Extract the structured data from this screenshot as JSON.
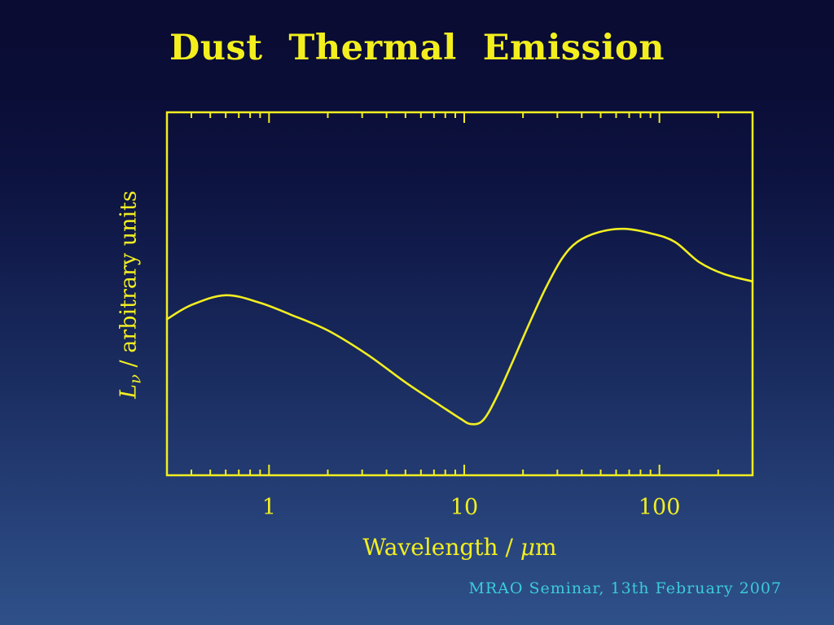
{
  "slide": {
    "title": "Dust Thermal Emission",
    "footer": "MRAO Seminar, 13th February 2007"
  },
  "labels": {
    "ylabel_L": "L",
    "ylabel_nu": "ν",
    "ylabel_rest": " / arbitrary units",
    "xlabel_main": "Wavelength / ",
    "xlabel_mu": "μ",
    "xlabel_unit": "m"
  },
  "colors": {
    "background_top": "#0a0c33",
    "background_bottom": "#2e5089",
    "accent_yellow": "#f2ee21",
    "footer_cyan": "#3bccd8"
  },
  "chart_data": {
    "type": "line",
    "title": "Dust Thermal Emission",
    "xlabel": "Wavelength / μm",
    "ylabel": "L_ν / arbitrary units",
    "x_scale": "log",
    "xlim": [
      0.3,
      300
    ],
    "ylim": [
      0,
      1
    ],
    "grid": false,
    "legend": false,
    "x_major_ticks": [
      1,
      10,
      100
    ],
    "x_major_tick_labels": [
      "1",
      "10",
      "100"
    ],
    "x_minor_ticks": [
      0.4,
      0.5,
      0.6,
      0.7,
      0.8,
      0.9,
      2,
      3,
      4,
      5,
      6,
      7,
      8,
      9,
      20,
      30,
      40,
      50,
      60,
      70,
      80,
      90,
      200
    ],
    "series": [
      {
        "name": "dust thermal emission spectrum",
        "x": [
          0.3,
          0.4,
          0.6,
          0.9,
          1.3,
          2.0,
          3.2,
          5.0,
          7.5,
          9.5,
          10.8,
          12.5,
          14.7,
          17.8,
          21.5,
          26,
          31.6,
          38,
          49,
          66,
          91,
          120,
          160,
          215,
          300
        ],
        "y": [
          0.43,
          0.469,
          0.496,
          0.475,
          0.442,
          0.399,
          0.332,
          0.256,
          0.193,
          0.157,
          0.141,
          0.152,
          0.217,
          0.316,
          0.417,
          0.513,
          0.596,
          0.643,
          0.67,
          0.679,
          0.666,
          0.643,
          0.587,
          0.554,
          0.534
        ]
      }
    ],
    "line_color": "#f2ee21",
    "axis_color": "#f2ee21",
    "layout": {
      "plot_left": 205,
      "plot_top": 138,
      "plot_right": 924,
      "plot_bottom": 584,
      "major_tick_len": 13,
      "minor_tick_len": 7,
      "tick_label_baseline_offset": 48
    }
  }
}
